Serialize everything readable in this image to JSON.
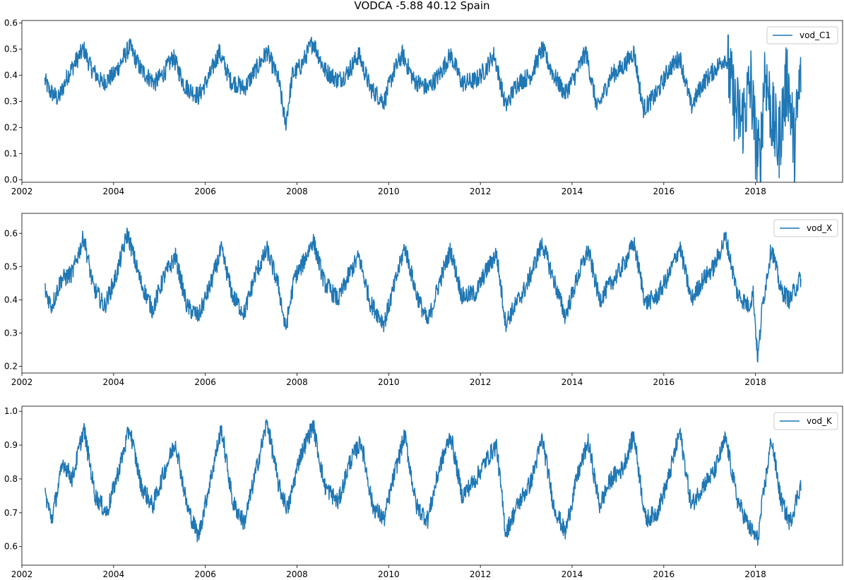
{
  "figure": {
    "title": "VODCA -5.88 40.12 Spain",
    "line_color": "#1f77b4"
  },
  "chart_data": [
    {
      "type": "line",
      "series_name": "vod_C1",
      "legend_placement": "top-right",
      "grid": false,
      "xlim": [
        2002.0,
        2019.9
      ],
      "ylim": [
        -0.01,
        0.61
      ],
      "x_ticks": [
        2002,
        2004,
        2006,
        2008,
        2010,
        2012,
        2014,
        2016,
        2018
      ],
      "x_tick_labels": [
        "2002",
        "2004",
        "2006",
        "2008",
        "2010",
        "2012",
        "2014",
        "2016",
        "2018"
      ],
      "y_ticks": [
        0.0,
        0.1,
        0.2,
        0.3,
        0.4,
        0.5,
        0.6
      ],
      "y_tick_labels": [
        "0.0",
        "0.1",
        "0.2",
        "0.3",
        "0.4",
        "0.5",
        "0.6"
      ],
      "points": [
        [
          2002.5,
          0.38
        ],
        [
          2002.6,
          0.34
        ],
        [
          2002.8,
          0.31
        ],
        [
          2003.0,
          0.4
        ],
        [
          2003.2,
          0.46
        ],
        [
          2003.35,
          0.5
        ],
        [
          2003.5,
          0.43
        ],
        [
          2003.75,
          0.37
        ],
        [
          2004.0,
          0.4
        ],
        [
          2004.2,
          0.46
        ],
        [
          2004.35,
          0.51
        ],
        [
          2004.6,
          0.42
        ],
        [
          2004.9,
          0.37
        ],
        [
          2005.1,
          0.41
        ],
        [
          2005.3,
          0.47
        ],
        [
          2005.55,
          0.36
        ],
        [
          2005.85,
          0.32
        ],
        [
          2006.1,
          0.4
        ],
        [
          2006.3,
          0.49
        ],
        [
          2006.55,
          0.38
        ],
        [
          2006.85,
          0.35
        ],
        [
          2007.1,
          0.42
        ],
        [
          2007.35,
          0.49
        ],
        [
          2007.6,
          0.38
        ],
        [
          2007.75,
          0.21
        ],
        [
          2007.9,
          0.4
        ],
        [
          2008.1,
          0.44
        ],
        [
          2008.35,
          0.53
        ],
        [
          2008.6,
          0.42
        ],
        [
          2008.9,
          0.38
        ],
        [
          2009.1,
          0.41
        ],
        [
          2009.35,
          0.48
        ],
        [
          2009.6,
          0.35
        ],
        [
          2009.9,
          0.3
        ],
        [
          2010.1,
          0.41
        ],
        [
          2010.3,
          0.48
        ],
        [
          2010.55,
          0.38
        ],
        [
          2010.85,
          0.35
        ],
        [
          2011.1,
          0.4
        ],
        [
          2011.35,
          0.48
        ],
        [
          2011.6,
          0.37
        ],
        [
          2011.9,
          0.38
        ],
        [
          2012.1,
          0.42
        ],
        [
          2012.3,
          0.48
        ],
        [
          2012.55,
          0.28
        ],
        [
          2012.8,
          0.37
        ],
        [
          2013.1,
          0.4
        ],
        [
          2013.35,
          0.5
        ],
        [
          2013.6,
          0.4
        ],
        [
          2013.85,
          0.33
        ],
        [
          2014.1,
          0.41
        ],
        [
          2014.3,
          0.49
        ],
        [
          2014.55,
          0.27
        ],
        [
          2014.85,
          0.4
        ],
        [
          2015.1,
          0.43
        ],
        [
          2015.35,
          0.49
        ],
        [
          2015.55,
          0.27
        ],
        [
          2015.85,
          0.33
        ],
        [
          2016.1,
          0.42
        ],
        [
          2016.35,
          0.47
        ],
        [
          2016.6,
          0.28
        ],
        [
          2016.85,
          0.37
        ],
        [
          2017.1,
          0.42
        ],
        [
          2017.35,
          0.47
        ],
        [
          2017.55,
          0.28
        ],
        [
          2017.7,
          0.22
        ],
        [
          2017.9,
          0.37
        ],
        [
          2018.0,
          0.15
        ],
        [
          2018.1,
          0.05
        ],
        [
          2018.2,
          0.43
        ],
        [
          2018.35,
          0.25
        ],
        [
          2018.5,
          0.13
        ],
        [
          2018.7,
          0.4
        ],
        [
          2018.85,
          0.12
        ],
        [
          2019.0,
          0.44
        ]
      ]
    },
    {
      "type": "line",
      "series_name": "vod_X",
      "legend_placement": "top-right",
      "grid": false,
      "xlim": [
        2002.0,
        2019.9
      ],
      "ylim": [
        0.18,
        0.66
      ],
      "x_ticks": [
        2002,
        2004,
        2006,
        2008,
        2010,
        2012,
        2014,
        2016,
        2018
      ],
      "x_tick_labels": [
        "2002",
        "2004",
        "2006",
        "2008",
        "2010",
        "2012",
        "2014",
        "2016",
        "2018"
      ],
      "y_ticks": [
        0.2,
        0.3,
        0.4,
        0.5,
        0.6
      ],
      "y_tick_labels": [
        "0.2",
        "0.3",
        "0.4",
        "0.5",
        "0.6"
      ],
      "points": [
        [
          2002.5,
          0.43
        ],
        [
          2002.65,
          0.38
        ],
        [
          2002.85,
          0.46
        ],
        [
          2003.1,
          0.48
        ],
        [
          2003.35,
          0.59
        ],
        [
          2003.55,
          0.44
        ],
        [
          2003.8,
          0.38
        ],
        [
          2004.05,
          0.47
        ],
        [
          2004.3,
          0.6
        ],
        [
          2004.6,
          0.45
        ],
        [
          2004.85,
          0.37
        ],
        [
          2005.1,
          0.47
        ],
        [
          2005.35,
          0.53
        ],
        [
          2005.6,
          0.38
        ],
        [
          2005.85,
          0.35
        ],
        [
          2006.1,
          0.44
        ],
        [
          2006.35,
          0.55
        ],
        [
          2006.6,
          0.41
        ],
        [
          2006.85,
          0.36
        ],
        [
          2007.1,
          0.48
        ],
        [
          2007.35,
          0.55
        ],
        [
          2007.6,
          0.44
        ],
        [
          2007.75,
          0.31
        ],
        [
          2007.95,
          0.47
        ],
        [
          2008.1,
          0.5
        ],
        [
          2008.35,
          0.58
        ],
        [
          2008.6,
          0.45
        ],
        [
          2008.9,
          0.4
        ],
        [
          2009.15,
          0.48
        ],
        [
          2009.35,
          0.53
        ],
        [
          2009.6,
          0.39
        ],
        [
          2009.9,
          0.33
        ],
        [
          2010.1,
          0.43
        ],
        [
          2010.35,
          0.56
        ],
        [
          2010.6,
          0.42
        ],
        [
          2010.85,
          0.33
        ],
        [
          2011.1,
          0.45
        ],
        [
          2011.35,
          0.55
        ],
        [
          2011.6,
          0.41
        ],
        [
          2011.9,
          0.42
        ],
        [
          2012.1,
          0.48
        ],
        [
          2012.35,
          0.54
        ],
        [
          2012.55,
          0.33
        ],
        [
          2012.75,
          0.38
        ],
        [
          2013.0,
          0.44
        ],
        [
          2013.35,
          0.57
        ],
        [
          2013.6,
          0.46
        ],
        [
          2013.85,
          0.35
        ],
        [
          2014.1,
          0.46
        ],
        [
          2014.35,
          0.55
        ],
        [
          2014.6,
          0.4
        ],
        [
          2014.85,
          0.45
        ],
        [
          2015.1,
          0.5
        ],
        [
          2015.35,
          0.57
        ],
        [
          2015.6,
          0.39
        ],
        [
          2015.85,
          0.41
        ],
        [
          2016.1,
          0.47
        ],
        [
          2016.35,
          0.56
        ],
        [
          2016.6,
          0.4
        ],
        [
          2016.85,
          0.46
        ],
        [
          2017.1,
          0.5
        ],
        [
          2017.35,
          0.59
        ],
        [
          2017.6,
          0.42
        ],
        [
          2017.85,
          0.38
        ],
        [
          2017.95,
          0.42
        ],
        [
          2018.05,
          0.22
        ],
        [
          2018.15,
          0.38
        ],
        [
          2018.35,
          0.56
        ],
        [
          2018.55,
          0.43
        ],
        [
          2018.75,
          0.4
        ],
        [
          2019.0,
          0.47
        ]
      ]
    },
    {
      "type": "line",
      "series_name": "vod_K",
      "legend_placement": "top-right",
      "grid": false,
      "xlim": [
        2002.0,
        2019.9
      ],
      "ylim": [
        0.545,
        1.015
      ],
      "x_ticks": [
        2002,
        2004,
        2006,
        2008,
        2010,
        2012,
        2014,
        2016,
        2018
      ],
      "x_tick_labels": [
        "2002",
        "2004",
        "2006",
        "2008",
        "2010",
        "2012",
        "2014",
        "2016",
        "2018"
      ],
      "y_ticks": [
        0.6,
        0.7,
        0.8,
        0.9,
        1.0
      ],
      "y_tick_labels": [
        "0.6",
        "0.7",
        "0.8",
        "0.9",
        "1.0"
      ],
      "points": [
        [
          2002.5,
          0.76
        ],
        [
          2002.65,
          0.68
        ],
        [
          2002.9,
          0.85
        ],
        [
          2003.1,
          0.8
        ],
        [
          2003.35,
          0.95
        ],
        [
          2003.6,
          0.75
        ],
        [
          2003.85,
          0.7
        ],
        [
          2004.1,
          0.82
        ],
        [
          2004.35,
          0.95
        ],
        [
          2004.6,
          0.78
        ],
        [
          2004.85,
          0.72
        ],
        [
          2005.1,
          0.82
        ],
        [
          2005.35,
          0.91
        ],
        [
          2005.6,
          0.72
        ],
        [
          2005.85,
          0.63
        ],
        [
          2006.1,
          0.79
        ],
        [
          2006.35,
          0.95
        ],
        [
          2006.6,
          0.73
        ],
        [
          2006.85,
          0.67
        ],
        [
          2007.1,
          0.82
        ],
        [
          2007.35,
          0.97
        ],
        [
          2007.6,
          0.78
        ],
        [
          2007.8,
          0.71
        ],
        [
          2008.05,
          0.86
        ],
        [
          2008.35,
          0.96
        ],
        [
          2008.6,
          0.78
        ],
        [
          2008.9,
          0.73
        ],
        [
          2009.15,
          0.85
        ],
        [
          2009.4,
          0.91
        ],
        [
          2009.65,
          0.72
        ],
        [
          2009.9,
          0.68
        ],
        [
          2010.1,
          0.8
        ],
        [
          2010.35,
          0.93
        ],
        [
          2010.6,
          0.72
        ],
        [
          2010.85,
          0.68
        ],
        [
          2011.1,
          0.83
        ],
        [
          2011.35,
          0.93
        ],
        [
          2011.6,
          0.75
        ],
        [
          2011.9,
          0.8
        ],
        [
          2012.1,
          0.85
        ],
        [
          2012.35,
          0.9
        ],
        [
          2012.55,
          0.64
        ],
        [
          2012.8,
          0.72
        ],
        [
          2013.1,
          0.79
        ],
        [
          2013.35,
          0.92
        ],
        [
          2013.6,
          0.72
        ],
        [
          2013.85,
          0.64
        ],
        [
          2014.1,
          0.8
        ],
        [
          2014.35,
          0.91
        ],
        [
          2014.6,
          0.72
        ],
        [
          2014.85,
          0.8
        ],
        [
          2015.1,
          0.83
        ],
        [
          2015.35,
          0.93
        ],
        [
          2015.6,
          0.68
        ],
        [
          2015.85,
          0.7
        ],
        [
          2016.1,
          0.8
        ],
        [
          2016.35,
          0.94
        ],
        [
          2016.6,
          0.72
        ],
        [
          2016.85,
          0.78
        ],
        [
          2017.1,
          0.82
        ],
        [
          2017.35,
          0.92
        ],
        [
          2017.6,
          0.74
        ],
        [
          2017.85,
          0.66
        ],
        [
          2018.05,
          0.62
        ],
        [
          2018.15,
          0.73
        ],
        [
          2018.35,
          0.92
        ],
        [
          2018.55,
          0.74
        ],
        [
          2018.75,
          0.67
        ],
        [
          2019.0,
          0.79
        ]
      ]
    }
  ]
}
